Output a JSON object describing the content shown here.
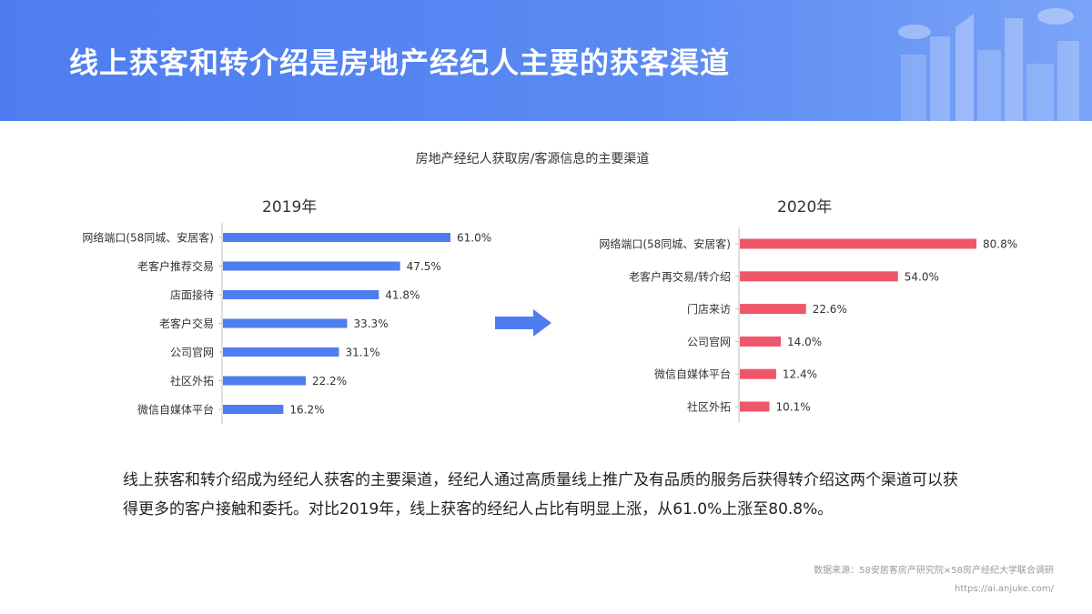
{
  "header": {
    "title": "线上获客和转介绍是房地产经纪人主要的获客渠道"
  },
  "chart_title": "房地产经纪人获取房/客源信息的主要渠道",
  "colors": {
    "header_bg": "#4d7df0",
    "bar_2019": "#4d7df0",
    "bar_2020": "#f0566a"
  },
  "chart_data": [
    {
      "type": "bar",
      "orientation": "horizontal",
      "title": "2019年",
      "categories": [
        "网络端口(58同城、安居客)",
        "老客户推荐交易",
        "店面接待",
        "老客户交易",
        "公司官网",
        "社区外拓",
        "微信自媒体平台"
      ],
      "values": [
        61.0,
        47.5,
        41.8,
        33.3,
        31.1,
        22.2,
        16.2
      ],
      "labels": [
        "61.0%",
        "47.5%",
        "41.8%",
        "33.3%",
        "31.1%",
        "22.2%",
        "16.2%"
      ],
      "color": "#4d7df0"
    },
    {
      "type": "bar",
      "orientation": "horizontal",
      "title": "2020年",
      "categories": [
        "网络端口(58同城、安居客)",
        "老客户再交易/转介绍",
        "门店来访",
        "公司官网",
        "微信自媒体平台",
        "社区外拓"
      ],
      "values": [
        80.8,
        54.0,
        22.6,
        14.0,
        12.4,
        10.1
      ],
      "labels": [
        "80.8%",
        "54.0%",
        "22.6%",
        "14.0%",
        "12.4%",
        "10.1%"
      ],
      "color": "#f0566a"
    }
  ],
  "description": {
    "line1": "线上获客和转介绍成为经纪人获客的主要渠道，经纪人通过高质量线上推广及有品质的服务后获得转介绍这两个渠道可以获",
    "line2": "得更多的客户接触和委托。对比2019年，线上获客的经纪人占比有明显上涨，从61.0%上涨至80.8%。"
  },
  "source": {
    "line1": "数据来源：58安居客房产研究院×58房产经纪大学联合调研",
    "line2": "https://ai.anjuke.com/"
  }
}
